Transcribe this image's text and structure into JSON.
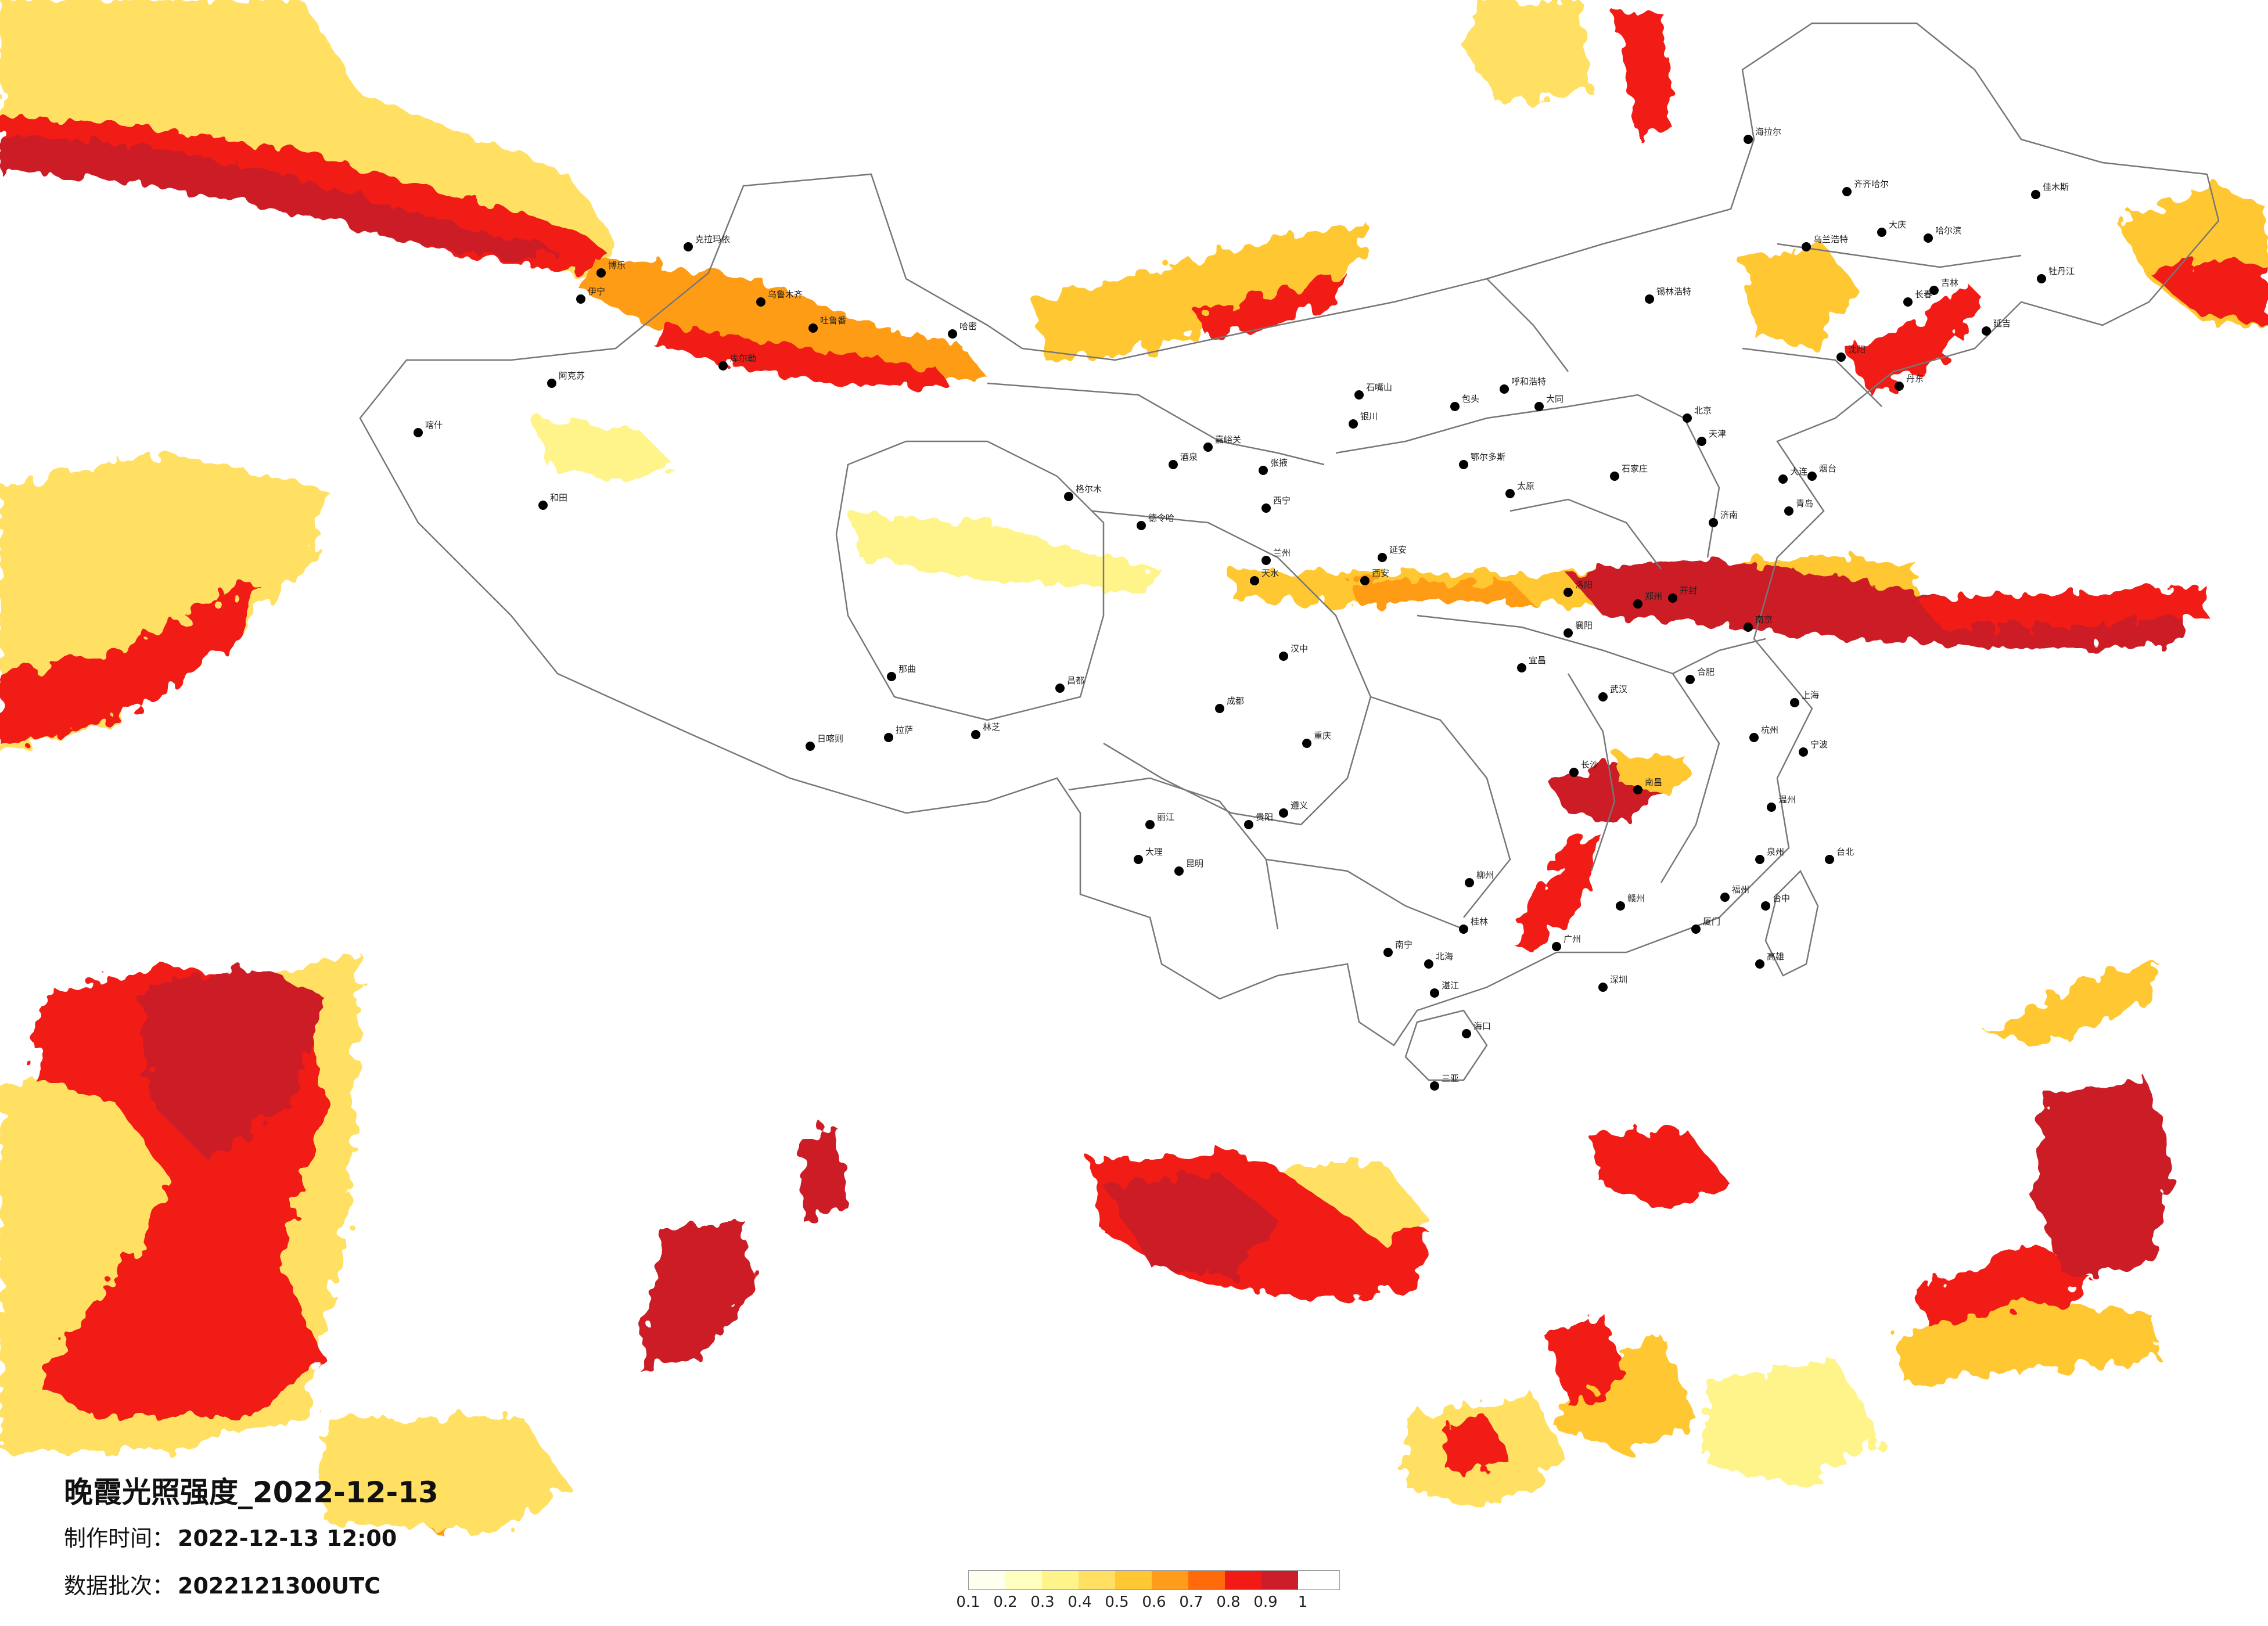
{
  "map": {
    "title": "晚霞光照强度_2022-12-13",
    "issue_label": "制作时间：",
    "issue_value": "2022-12-13 12:00",
    "batch_label": "数据批次：",
    "batch_value": "2022121300UTC"
  },
  "legend": {
    "ticks": [
      "0.1",
      "0.2",
      "0.3",
      "0.4",
      "0.5",
      "0.6",
      "0.7",
      "0.8",
      "0.9",
      "1"
    ],
    "colors": [
      "#fffff0",
      "#ffffc0",
      "#fff48a",
      "#ffe063",
      "#ffc832",
      "#ff9c19",
      "#ff6a0a",
      "#f21a14",
      "#cc1e28"
    ]
  },
  "cities": [
    "克拉玛依",
    "乌鲁木齐",
    "吐鲁番",
    "哈密",
    "阿克苏",
    "和田",
    "喀什",
    "库尔勒",
    "伊宁",
    "博乐",
    "拉萨",
    "日喀则",
    "林芝",
    "那曲",
    "昌都",
    "西宁",
    "格尔木",
    "德令哈",
    "酒泉",
    "张掖",
    "嘉峪关",
    "兰州",
    "天水",
    "银川",
    "石嘴山",
    "呼和浩特",
    "包头",
    "鄂尔多斯",
    "锡林浩特",
    "乌兰浩特",
    "海拉尔",
    "齐齐哈尔",
    "哈尔滨",
    "佳木斯",
    "牡丹江",
    "大庆",
    "长春",
    "吉林",
    "延吉",
    "沈阳",
    "大连",
    "丹东",
    "北京",
    "天津",
    "石家庄",
    "太原",
    "大同",
    "郑州",
    "开封",
    "洛阳",
    "济南",
    "青岛",
    "烟台",
    "南京",
    "合肥",
    "武汉",
    "长沙",
    "南昌",
    "杭州",
    "宁波",
    "上海",
    "福州",
    "厦门",
    "广州",
    "深圳",
    "南宁",
    "桂林",
    "海口",
    "三亚",
    "贵阳",
    "遵义",
    "昆明",
    "大理",
    "丽江",
    "成都",
    "重庆",
    "西安",
    "延安",
    "汉中",
    "宜昌",
    "襄阳",
    "赣州",
    "泉州",
    "温州",
    "台北",
    "台中",
    "高雄",
    "柳州",
    "湛江",
    "北海"
  ]
}
